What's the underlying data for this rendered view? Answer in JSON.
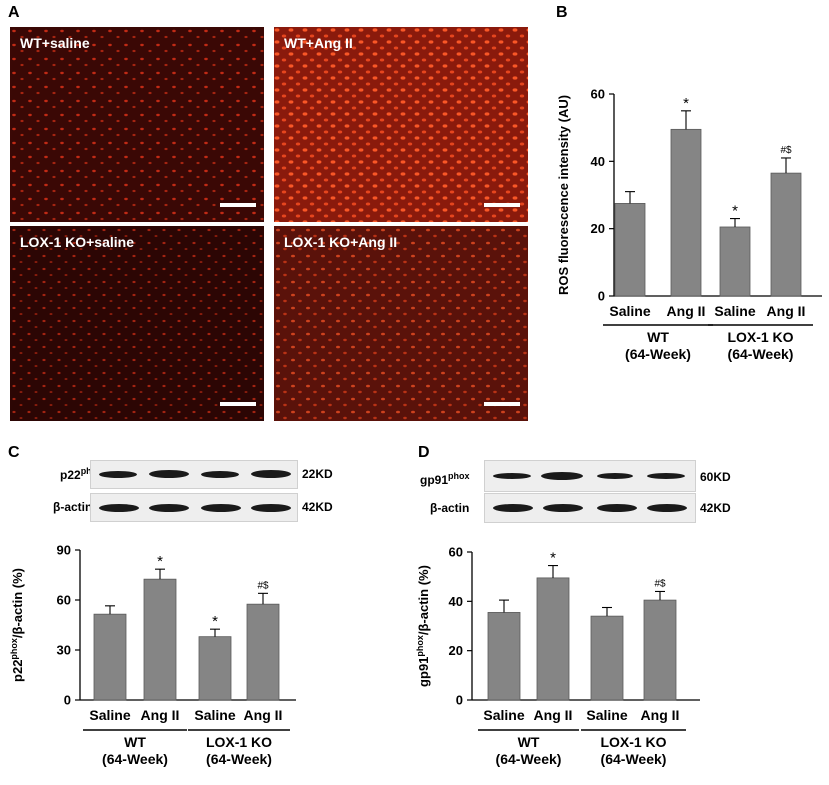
{
  "figure": {
    "panel_letters": [
      "A",
      "B",
      "C",
      "D"
    ],
    "panel_a": {
      "images": [
        {
          "label": "WT+saline"
        },
        {
          "label": "WT+Ang II"
        },
        {
          "label": "LOX-1 KO+saline"
        },
        {
          "label": "LOX-1 KO+Ang II"
        }
      ]
    },
    "blot_c": {
      "protein_base": "p22",
      "protein_sup": "phox",
      "protein_kd": "22KD",
      "control": "β-actin",
      "control_kd": "42KD"
    },
    "blot_d": {
      "protein_base": "gp91",
      "protein_sup": "phox",
      "protein_kd": "60KD",
      "control": "β-actin",
      "control_kd": "42KD"
    }
  },
  "chart_data": [
    {
      "panel": "B",
      "type": "bar",
      "categories": [
        "Saline",
        "Ang II",
        "Saline",
        "Ang II"
      ],
      "groups": [
        {
          "label_line1": "WT",
          "label_line2": "(64-Week)"
        },
        {
          "label_line1": "LOX-1 KO",
          "label_line2": "(64-Week)"
        }
      ],
      "values": [
        27.5,
        49.5,
        20.5,
        36.5
      ],
      "errors": [
        3.5,
        5.5,
        2.5,
        4.5
      ],
      "annotations": [
        "",
        "*",
        "*",
        "#$"
      ],
      "ylabel": "ROS fluorescence intensity (AU)",
      "ylim": [
        0,
        60
      ],
      "yticks": [
        0,
        20,
        40,
        60
      ],
      "grid": false,
      "bar_color": "#858585"
    },
    {
      "panel": "C",
      "type": "bar",
      "categories": [
        "Saline",
        "Ang II",
        "Saline",
        "Ang II"
      ],
      "groups": [
        {
          "label_line1": "WT",
          "label_line2": "(64-Week)"
        },
        {
          "label_line1": "LOX-1 KO",
          "label_line2": "(64-Week)"
        }
      ],
      "values": [
        51.5,
        72.5,
        38.0,
        57.5
      ],
      "errors": [
        5.0,
        6.0,
        4.5,
        6.5
      ],
      "annotations": [
        "",
        "*",
        "*",
        "#$"
      ],
      "ylabel_base": "p22",
      "ylabel_sup": "phox",
      "ylabel_rest": "/β-actin (%)",
      "ylim": [
        0,
        90
      ],
      "yticks": [
        0,
        30,
        60,
        90
      ],
      "grid": false,
      "bar_color": "#858585"
    },
    {
      "panel": "D",
      "type": "bar",
      "categories": [
        "Saline",
        "Ang II",
        "Saline",
        "Ang II"
      ],
      "groups": [
        {
          "label_line1": "WT",
          "label_line2": "(64-Week)"
        },
        {
          "label_line1": "LOX-1 KO",
          "label_line2": "(64-Week)"
        }
      ],
      "values": [
        35.5,
        49.5,
        34.0,
        40.5
      ],
      "errors": [
        5.0,
        5.0,
        3.5,
        3.5
      ],
      "annotations": [
        "",
        "*",
        "",
        "#$"
      ],
      "ylabel_base": "gp91",
      "ylabel_sup": "phox",
      "ylabel_rest": "/β-actin (%)",
      "ylim": [
        0,
        60
      ],
      "yticks": [
        0,
        20,
        40,
        60
      ],
      "grid": false,
      "bar_color": "#858585"
    }
  ]
}
